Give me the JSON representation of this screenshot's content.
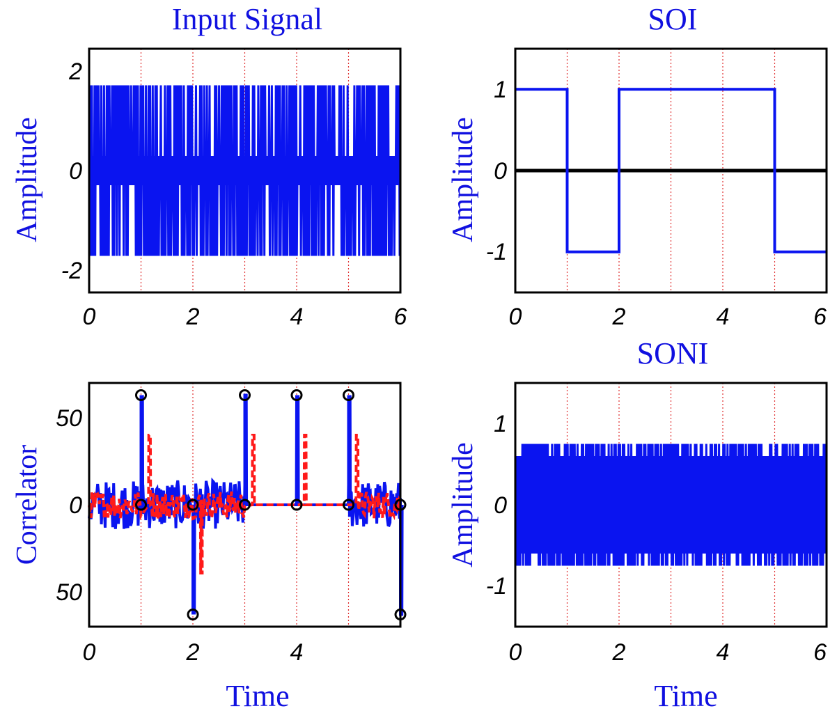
{
  "colors": {
    "signal": "#0a14f0",
    "secondary": "#ff1a1a",
    "baseline": "#000000",
    "grid": "#e03030",
    "label": "#1010e0"
  },
  "chart_data": [
    {
      "id": "input",
      "type": "line",
      "title": "Input Signal",
      "xlabel": "",
      "ylabel": "Amplitude",
      "xlim": [
        0,
        6
      ],
      "ylim": [
        -2.5,
        2.5
      ],
      "xticks": [
        "0",
        "2",
        "4",
        "6"
      ],
      "yticks": [
        "2",
        "0",
        "-2"
      ],
      "grid_x": [
        1,
        2,
        3,
        4,
        5
      ],
      "baseline": false,
      "series": [
        {
          "style": "dense-oscillation",
          "color": "#0a14f0",
          "levels": [
            -1.75,
            -0.3,
            0.3,
            1.75
          ],
          "cycles": 230,
          "x_range": [
            0,
            6
          ]
        }
      ]
    },
    {
      "id": "soi",
      "type": "line",
      "title": "SOI",
      "xlabel": "",
      "ylabel": "Amplitude",
      "xlim": [
        0,
        6
      ],
      "ylim": [
        -1.5,
        1.5
      ],
      "xticks": [
        "0",
        "2",
        "4",
        "6"
      ],
      "yticks": [
        "1",
        "0",
        "-1"
      ],
      "grid_x": [
        1,
        2,
        3,
        4,
        5
      ],
      "baseline": true,
      "series": [
        {
          "style": "step",
          "color": "#0a14f0",
          "x": [
            0,
            1,
            1,
            2,
            2,
            5,
            5,
            6
          ],
          "y": [
            1,
            1,
            -1,
            -1,
            1,
            1,
            -1,
            -1
          ]
        }
      ]
    },
    {
      "id": "correlator",
      "type": "line",
      "title": "",
      "xlabel": "Time",
      "ylabel": "Correlator",
      "xlim": [
        0,
        6
      ],
      "ylim": [
        -70,
        70
      ],
      "xticks": [
        "0",
        "2",
        "4"
      ],
      "yticks": [
        "50",
        "0",
        "50"
      ],
      "grid_x": [
        1,
        2,
        3,
        4,
        5
      ],
      "baseline": false,
      "series": [
        {
          "style": "correlation",
          "color": "#0a14f0",
          "peaks": [
            {
              "x": 1,
              "y": 63
            },
            {
              "x": 2,
              "y": -63
            },
            {
              "x": 3,
              "y": 63
            },
            {
              "x": 4,
              "y": 63
            },
            {
              "x": 5,
              "y": 63
            },
            {
              "x": 6,
              "y": -63
            }
          ],
          "noise_segments": [
            [
              0,
              1
            ],
            [
              1,
              3
            ],
            [
              5,
              6
            ]
          ],
          "noise_amp": 14
        },
        {
          "style": "correlation",
          "color": "#ff1a1a",
          "dashed": true,
          "peaks": [
            {
              "x": 1.15,
              "y": 40
            },
            {
              "x": 2.15,
              "y": -40
            },
            {
              "x": 3.15,
              "y": 40
            },
            {
              "x": 4.15,
              "y": 40
            },
            {
              "x": 5.15,
              "y": 40
            }
          ],
          "noise_segments": [
            [
              0,
              1
            ],
            [
              1.2,
              3
            ],
            [
              5.2,
              6
            ]
          ],
          "noise_amp": 8
        }
      ],
      "markers": [
        {
          "x": 1,
          "y": 63
        },
        {
          "x": 1,
          "y": 0
        },
        {
          "x": 2,
          "y": -63
        },
        {
          "x": 2,
          "y": 0
        },
        {
          "x": 3,
          "y": 63
        },
        {
          "x": 3,
          "y": 0
        },
        {
          "x": 4,
          "y": 63
        },
        {
          "x": 4,
          "y": 0
        },
        {
          "x": 5,
          "y": 63
        },
        {
          "x": 5,
          "y": 0
        },
        {
          "x": 6,
          "y": -63
        },
        {
          "x": 6,
          "y": 0
        }
      ]
    },
    {
      "id": "soni",
      "type": "line",
      "title": "SONI",
      "xlabel": "Time",
      "ylabel": "Amplitude",
      "xlim": [
        0,
        6
      ],
      "ylim": [
        -1.5,
        1.5
      ],
      "xticks": [
        "0",
        "2",
        "4",
        "6"
      ],
      "yticks": [
        "1",
        "0",
        "-1"
      ],
      "grid_x": [
        1,
        2,
        3,
        4,
        5
      ],
      "baseline": true,
      "series": [
        {
          "style": "dense-oscillation",
          "color": "#0a14f0",
          "levels": [
            -0.75,
            -0.6,
            0.6,
            0.75
          ],
          "cycles": 220,
          "x_range": [
            0,
            6
          ]
        }
      ]
    }
  ]
}
